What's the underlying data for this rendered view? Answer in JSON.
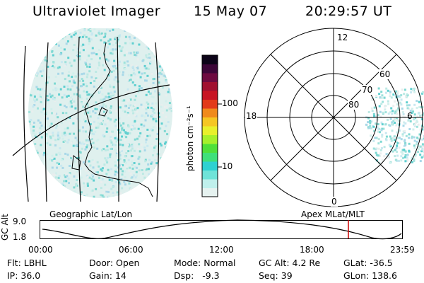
{
  "header": {
    "instrument": "Ultraviolet Imager",
    "date": "15 May 07",
    "time": "20:29:57 UT"
  },
  "geo_panel": {
    "caption": "Geographic Lat/Lon"
  },
  "colorbar": {
    "unit_label": "photon cm⁻²s⁻¹",
    "ticks": [
      "100",
      "10"
    ],
    "colors": [
      "#e6f2f0",
      "#bff0ec",
      "#6fe3d8",
      "#2ed1d1",
      "#3ee07a",
      "#4fe03a",
      "#a6f02c",
      "#e8f02c",
      "#f5c623",
      "#f08a1c",
      "#e23a1a",
      "#c81424",
      "#a11030",
      "#6e0a40",
      "#3c0638",
      "#0c0418"
    ]
  },
  "polar_panel": {
    "caption": "Apex MLat/MLT",
    "hour_labels": [
      "12",
      "18",
      "6",
      "0"
    ],
    "lat_labels": [
      "60",
      "70",
      "80"
    ]
  },
  "timeline": {
    "axis_title": "GC Alt",
    "y_ticks": [
      "9.0",
      "1.8"
    ],
    "x_ticks": [
      "00:00",
      "06:00",
      "12:00",
      "18:00",
      "23:59"
    ],
    "marker_color": "#cc0000"
  },
  "status": {
    "row1": [
      {
        "key": "Flt:",
        "value": "LBHL"
      },
      {
        "key": "Door:",
        "value": "Open"
      },
      {
        "key": "Mode:",
        "value": "Normal"
      },
      {
        "key": "GC Alt:",
        "value": "4.2 Re"
      },
      {
        "key": "GLat:",
        "value": "-36.5"
      }
    ],
    "row2": [
      {
        "key": "IP:",
        "value": "36.0"
      },
      {
        "key": "Gain:",
        "value": "14"
      },
      {
        "key": "Dsp:",
        "value": "  -9.3"
      },
      {
        "key": "Seq:",
        "value": "39"
      },
      {
        "key": "GLon:",
        "value": "138.6"
      }
    ]
  }
}
